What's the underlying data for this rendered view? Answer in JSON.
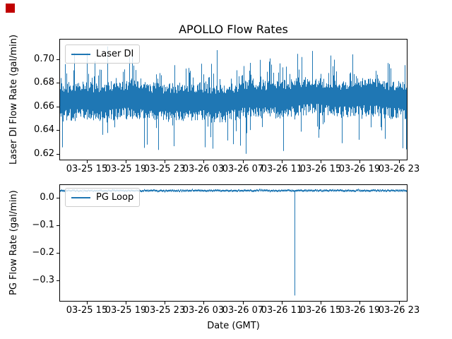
{
  "figure": {
    "background": "#ffffff",
    "text_color": "#000000",
    "red_square_marker": {
      "color": "#c00000"
    }
  },
  "chart_data": [
    {
      "type": "line",
      "title": "APOLLO Flow Rates",
      "ylabel": "Laser DI Flow Rate (gal/min)",
      "xlabel": "",
      "legend_position": "upper left",
      "grid": false,
      "ylim": [
        0.6146,
        0.7173
      ],
      "yticks": [
        0.7,
        0.68,
        0.66,
        0.64,
        0.62
      ],
      "ytick_labels": [
        "0.70",
        "0.68",
        "0.66",
        "0.64",
        "0.62"
      ],
      "xtick_labels": [
        "03-25 15",
        "03-25 19",
        "03-25 23",
        "03-26 03",
        "03-26 07",
        "03-26 11",
        "03-26 15",
        "03-26 19",
        "03-26 23"
      ],
      "x_first_tick_frac": 0.0781,
      "x_tick_step_frac": 0.11207,
      "series": [
        {
          "name": "Laser DI",
          "color": "#1f77b4",
          "signal": "dense high-frequency noise band",
          "mean": 0.667,
          "typical_band": [
            0.655,
            0.686
          ],
          "spike_max": 0.712,
          "spike_min": 0.62,
          "trend": "slight upward drift left to right"
        }
      ]
    },
    {
      "type": "line",
      "title": "",
      "ylabel": "PG Flow Rate (gal/min)",
      "xlabel": "Date (GMT)",
      "legend_position": "upper left",
      "grid": false,
      "ylim": [
        -0.377,
        0.049
      ],
      "yticks": [
        0.0,
        -0.1,
        -0.2,
        -0.3
      ],
      "ytick_labels": [
        "0.0",
        "−0.1",
        "−0.2",
        "−0.3"
      ],
      "xtick_labels": [
        "03-25 15",
        "03-25 19",
        "03-25 23",
        "03-26 03",
        "03-26 07",
        "03-26 11",
        "03-26 15",
        "03-26 19",
        "03-26 23"
      ],
      "x_first_tick_frac": 0.0781,
      "x_tick_step_frac": 0.11207,
      "series": [
        {
          "name": "PG Loop",
          "color": "#1f77b4",
          "signal": "flat baseline with one dropout spike",
          "baseline": 0.026,
          "noise_amplitude": 0.004,
          "dropout_spike": {
            "approx_time": "03-26 ~14:00",
            "min_value": -0.355
          }
        }
      ]
    }
  ]
}
